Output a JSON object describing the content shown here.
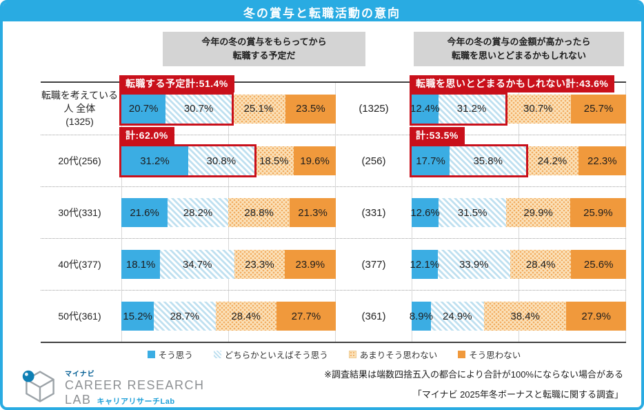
{
  "title": "冬の賞与と転職活動の意向",
  "colors": {
    "accent_cyan": "#29ABE2",
    "agree_strong": "#3BADE3",
    "agree_weak_stripe": "#BFE0F0",
    "disagree_weak_bg": "#FBE3BC",
    "disagree_weak_dot": "#F2AC60",
    "disagree_strong": "#F0993C",
    "highlight_red": "#C9101B",
    "header_gray": "#D4D4D4"
  },
  "panels": [
    {
      "header_line1": "今年の冬の賞与をもらってから",
      "header_line2": "転職する予定だ"
    },
    {
      "header_line1": "今年の冬の賞与の金額が高かったら",
      "header_line2": "転職を思いとどまるかもしれない"
    }
  ],
  "rows": [
    {
      "label_lines": [
        "転職を考えている人 全体",
        "(1325)"
      ],
      "count": "(1325)"
    },
    {
      "label_lines": [
        "20代(256)"
      ],
      "count": "(256)"
    },
    {
      "label_lines": [
        "30代(331)"
      ],
      "count": "(331)"
    },
    {
      "label_lines": [
        "40代(377)"
      ],
      "count": "(377)"
    },
    {
      "label_lines": [
        "50代(361)"
      ],
      "count": "(361)"
    }
  ],
  "legend": {
    "items": [
      {
        "label": "そう思う"
      },
      {
        "label": "どちらかといえばそう思う"
      },
      {
        "label": "あまりそう思わない"
      },
      {
        "label": "そう思わない"
      }
    ]
  },
  "chart_data": {
    "type": "bar",
    "subtype": "horizontal-stacked-100pct",
    "title": "冬の賞与と転職活動の意向",
    "unit": "%",
    "categories": [
      "転職を考えている人 全体(1325)",
      "20代(256)",
      "30代(331)",
      "40代(377)",
      "50代(361)"
    ],
    "answer_options": [
      "そう思う",
      "どちらかといえばそう思う",
      "あまりそう思わない",
      "そう思わない"
    ],
    "panels": [
      {
        "question": "今年の冬の賞与をもらってから転職する予定だ",
        "series": [
          {
            "name": "そう思う",
            "values": [
              20.7,
              31.2,
              21.6,
              18.1,
              15.2
            ]
          },
          {
            "name": "どちらかといえばそう思う",
            "values": [
              30.7,
              30.8,
              28.2,
              34.7,
              28.7
            ]
          },
          {
            "name": "あまりそう思わない",
            "values": [
              25.1,
              18.5,
              28.8,
              23.3,
              28.4
            ]
          },
          {
            "name": "そう思わない",
            "values": [
              23.5,
              19.6,
              21.3,
              23.9,
              27.7
            ]
          }
        ],
        "callouts": [
          {
            "row": 0,
            "label": "転職する予定計:51.4%",
            "sum": 51.4
          },
          {
            "row": 1,
            "label": "計:62.0%",
            "sum": 62.0
          }
        ]
      },
      {
        "question": "今年の冬の賞与の金額が高かったら転職を思いとどまるかもしれない",
        "series": [
          {
            "name": "そう思う",
            "values": [
              12.4,
              17.7,
              12.6,
              12.1,
              8.9
            ]
          },
          {
            "name": "どちらかといえばそう思う",
            "values": [
              31.2,
              35.8,
              31.5,
              33.9,
              24.9
            ]
          },
          {
            "name": "あまりそう思わない",
            "values": [
              30.7,
              24.2,
              29.9,
              28.4,
              38.4
            ]
          },
          {
            "name": "そう思わない",
            "values": [
              25.7,
              22.3,
              25.9,
              25.6,
              27.9
            ]
          }
        ],
        "callouts": [
          {
            "row": 0,
            "label": "転職を思いとどまるかもしれない計:43.6%",
            "sum": 43.6
          },
          {
            "row": 1,
            "label": "計:53.5%",
            "sum": 53.5
          }
        ]
      }
    ]
  },
  "footer": {
    "brand_small": "マイナビ",
    "brand_line1": "CAREER RESEARCH",
    "brand_line2": "LAB",
    "brand_sub": "キャリアリサーチLab",
    "note_rounding": "※調査結果は端数四捨五入の都合により合計が100%にならない場合がある",
    "note_source": "「マイナビ 2025年冬ボーナスと転職に関する調査」"
  }
}
